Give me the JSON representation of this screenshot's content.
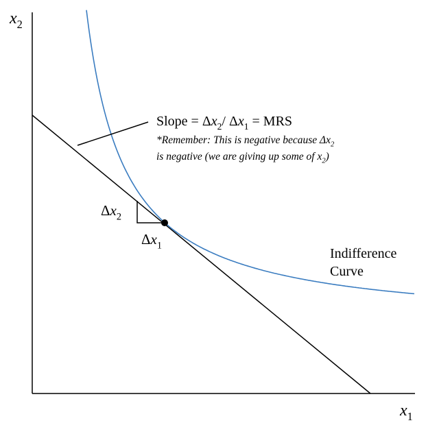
{
  "y_axis_label": [
    {
      "text": "x",
      "italic": true
    },
    {
      "text": "2",
      "sub": true
    }
  ],
  "x_axis_label": [
    {
      "text": "x",
      "italic": true
    },
    {
      "text": "1",
      "sub": true
    }
  ],
  "slope_label": [
    {
      "text": "Slope = Δ"
    },
    {
      "text": "x",
      "italic": true
    },
    {
      "text": "2",
      "sub": true
    },
    {
      "text": "/ Δ"
    },
    {
      "text": "x",
      "italic": true
    },
    {
      "text": "1",
      "sub": true
    },
    {
      "text": " = MRS"
    }
  ],
  "note_line_1": [
    {
      "text": "*Remember: This is negative because Δ"
    },
    {
      "text": "x",
      "italic": true
    },
    {
      "text": "2",
      "sub": true
    }
  ],
  "note_line_2": [
    {
      "text": "is negative (we are giving up some of "
    },
    {
      "text": "x",
      "italic": true
    },
    {
      "text": "2",
      "sub": true
    },
    {
      "text": ")"
    }
  ],
  "delta_x2_label": [
    {
      "text": "Δ"
    },
    {
      "text": "x",
      "italic": true
    },
    {
      "text": "2",
      "sub": true
    }
  ],
  "delta_x1_label": [
    {
      "text": "Δ"
    },
    {
      "text": "x",
      "italic": true
    },
    {
      "text": "1",
      "sub": true
    }
  ],
  "curve_label": [
    "Indifference",
    "Curve"
  ]
}
